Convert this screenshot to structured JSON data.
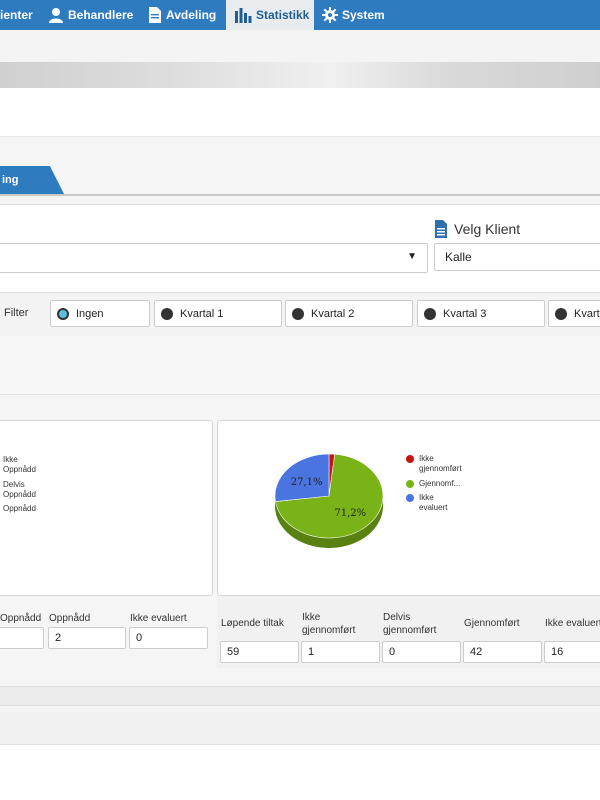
{
  "nav": {
    "items": [
      {
        "label": "ienter",
        "icon": "",
        "active": false
      },
      {
        "label": "Behandlere",
        "icon": "user-icon",
        "active": false
      },
      {
        "label": "Avdeling",
        "icon": "document-icon",
        "active": false
      },
      {
        "label": "Statistikk",
        "icon": "bar-chart-icon",
        "active": true
      },
      {
        "label": "System",
        "icon": "gear-icon",
        "active": false
      }
    ]
  },
  "tab": {
    "label": "ing"
  },
  "client": {
    "heading": "Velg Klient",
    "value": "Kalle",
    "dropdown_arrow": "▼"
  },
  "filter": {
    "label": "Filter",
    "options": [
      {
        "label": "Ingen",
        "selected": true
      },
      {
        "label": "Kvartal 1",
        "selected": false
      },
      {
        "label": "Kvartal 2",
        "selected": false
      },
      {
        "label": "Kvartal 3",
        "selected": false
      },
      {
        "label": "Kvartal",
        "selected": false
      }
    ]
  },
  "left_panel": {
    "legend": [
      "Ikke Oppnådd",
      "Delvis Oppnådd",
      "Oppnådd"
    ],
    "stats": [
      {
        "label": "Oppnådd",
        "value": ""
      },
      {
        "label": "Oppnådd",
        "value": "2"
      },
      {
        "label": "Ikke evaluert",
        "value": "0"
      }
    ]
  },
  "right_panel": {
    "legend": [
      {
        "label": "Ikke gjennomført",
        "color": "#cc1111"
      },
      {
        "label": "Gjennomf...",
        "color": "#7ab317"
      },
      {
        "label": "Ikke evaluert",
        "color": "#4a74e0"
      }
    ],
    "stats": [
      {
        "label": "Løpende tiltak",
        "value": "59"
      },
      {
        "label": "Ikke gjennomført",
        "value": "1"
      },
      {
        "label": "Delvis gjennomført",
        "value": "0"
      },
      {
        "label": "Gjennomført",
        "value": "42"
      },
      {
        "label": "Ikke evaluert",
        "value": "16"
      }
    ]
  },
  "chart_data": {
    "type": "pie",
    "categories": [
      "Ikke gjennomført",
      "Gjennomført",
      "Ikke evaluert"
    ],
    "values": [
      1.7,
      71.2,
      27.1
    ],
    "data_labels": [
      "",
      "71,2%",
      "27,1%"
    ],
    "colors": [
      "#cc1111",
      "#7ab317",
      "#4a74e0"
    ]
  }
}
